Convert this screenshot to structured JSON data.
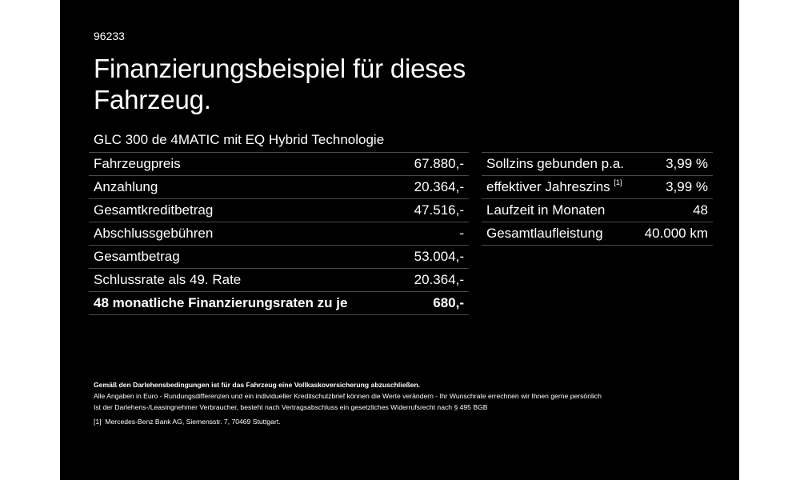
{
  "ref_number": "96233",
  "headline": "Finanzierungsbeispiel für dieses Fahrzeug.",
  "model": "GLC 300 de 4MATIC mit EQ Hybrid Technologie",
  "left_rows": [
    {
      "label": "Fahrzeugpreis",
      "value": "67.880,-"
    },
    {
      "label": "Anzahlung",
      "value": "20.364,-"
    },
    {
      "label": "Gesamtkreditbetrag",
      "value": "47.516,-"
    },
    {
      "label": "Abschlussgebühren",
      "value": "-"
    },
    {
      "label": "Gesamtbetrag",
      "value": "53.004,-"
    },
    {
      "label": "Schlussrate als 49. Rate",
      "value": "20.364,-"
    },
    {
      "label": "48 monatliche Finanzierungsraten zu je",
      "value": "680,-"
    }
  ],
  "right_rows": [
    {
      "label": "Sollzins gebunden p.a.",
      "value": "3,99 %"
    },
    {
      "label": "effektiver Jahreszins",
      "footnote": "[1]",
      "value": "3,99 %"
    },
    {
      "label": "Laufzeit in Monaten",
      "value": "48"
    },
    {
      "label": "Gesamtlaufleistung",
      "value": "40.000 km"
    }
  ],
  "fine_print": {
    "bold_line": "Gemäß den Darlehensbedingungen ist für das Fahrzeug eine Vollkaskoversicherung abzuschließen.",
    "line1": "Alle Angaben in Euro - Rundungsdifferenzen und ein individueller Kreditschutzbrief können die Werte verändern - Ihr Wunschrate errechnen wir Ihnen gerne persönlich",
    "line2": "Ist der Darlehens-/Leasingnehmer Verbraucher, besteht nach Vertragsabschluss ein gesetzliches Widerrufsrecht nach § 495 BGB",
    "footnote_marker": "[1]",
    "footnote_text": "Mercedes-Benz Bank AG, Siemensstr. 7, 70469 Stuttgart."
  }
}
